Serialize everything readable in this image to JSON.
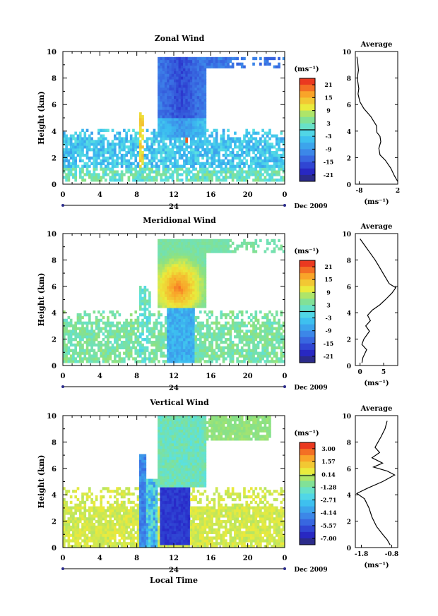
{
  "chart_data": [
    {
      "type": "heatmap",
      "title": "Zonal Wind",
      "xlabel": "",
      "ylabel": "Height (km)",
      "x_ticks": [
        "0",
        "4",
        "8",
        "12",
        "16",
        "20",
        "0"
      ],
      "y_ticks": [
        "0",
        "2",
        "4",
        "6",
        "8",
        "10"
      ],
      "xlim": [
        0,
        24
      ],
      "ylim": [
        0,
        10
      ],
      "date_tick": "24",
      "date_label": "Dec 2009",
      "colorbar": {
        "unit": "(ms⁻¹)",
        "ticks": [
          "21",
          "15",
          "9",
          "3",
          "-3",
          "-9",
          "-15",
          "-21"
        ],
        "range": [
          -24,
          24
        ]
      },
      "profile": {
        "title": "Average",
        "xlabel": "(ms⁻¹)",
        "x_ticks": [
          "-8",
          "2"
        ],
        "y_ticks": [
          "0",
          "2",
          "4",
          "6",
          "8",
          "10"
        ],
        "xlim": [
          -9,
          2
        ],
        "points": [
          [
            -8.6,
            9.6
          ],
          [
            -8.4,
            9.2
          ],
          [
            -8.2,
            8.6
          ],
          [
            -8.5,
            8.0
          ],
          [
            -8.1,
            7.2
          ],
          [
            -8.3,
            6.8
          ],
          [
            -7.8,
            6.2
          ],
          [
            -6.8,
            5.7
          ],
          [
            -5.0,
            5.1
          ],
          [
            -3.5,
            4.4
          ],
          [
            -3.4,
            3.9
          ],
          [
            -2.6,
            3.6
          ],
          [
            -2.4,
            3.2
          ],
          [
            -2.9,
            2.7
          ],
          [
            -2.6,
            2.2
          ],
          [
            -1.2,
            1.8
          ],
          [
            0.2,
            1.2
          ],
          [
            1.2,
            0.6
          ],
          [
            2.0,
            0.2
          ]
        ]
      }
    },
    {
      "type": "heatmap",
      "title": "Meridional Wind",
      "xlabel": "",
      "ylabel": "Height (km)",
      "x_ticks": [
        "0",
        "4",
        "8",
        "12",
        "16",
        "20",
        "0"
      ],
      "y_ticks": [
        "0",
        "2",
        "4",
        "6",
        "8",
        "10"
      ],
      "xlim": [
        0,
        24
      ],
      "ylim": [
        0,
        10
      ],
      "date_tick": "24",
      "date_label": "Dec 2009",
      "colorbar": {
        "unit": "(ms⁻¹)",
        "ticks": [
          "21",
          "15",
          "9",
          "3",
          "-3",
          "-9",
          "-15",
          "-21"
        ],
        "range": [
          -24,
          24
        ]
      },
      "profile": {
        "title": "Average",
        "xlabel": "(ms⁻¹)",
        "x_ticks": [
          "0",
          "5"
        ],
        "y_ticks": [
          "0",
          "2",
          "4",
          "6",
          "8",
          "10"
        ],
        "xlim": [
          -1,
          8
        ],
        "points": [
          [
            0.0,
            9.6
          ],
          [
            0.8,
            9.2
          ],
          [
            2.0,
            8.6
          ],
          [
            3.2,
            8.0
          ],
          [
            4.2,
            7.4
          ],
          [
            5.2,
            6.8
          ],
          [
            6.2,
            6.2
          ],
          [
            7.6,
            5.9
          ],
          [
            6.8,
            5.5
          ],
          [
            5.4,
            5.0
          ],
          [
            4.2,
            4.6
          ],
          [
            2.6,
            4.2
          ],
          [
            1.6,
            3.8
          ],
          [
            2.2,
            3.4
          ],
          [
            1.2,
            3.0
          ],
          [
            2.0,
            2.6
          ],
          [
            0.8,
            2.0
          ],
          [
            0.4,
            1.6
          ],
          [
            1.4,
            1.2
          ],
          [
            0.6,
            0.6
          ],
          [
            0.4,
            0.2
          ]
        ]
      }
    },
    {
      "type": "heatmap",
      "title": "Vertical Wind",
      "xlabel": "Local Time",
      "ylabel": "Height (km)",
      "x_ticks": [
        "0",
        "4",
        "8",
        "12",
        "16",
        "20",
        "0"
      ],
      "y_ticks": [
        "0",
        "2",
        "4",
        "6",
        "8",
        "10"
      ],
      "xlim": [
        0,
        24
      ],
      "ylim": [
        0,
        10
      ],
      "date_tick": "24",
      "date_label": "Dec 2009",
      "colorbar": {
        "unit": "(ms⁻¹)",
        "ticks": [
          "3.00",
          "1.57",
          "0.14",
          "-1.28",
          "-2.71",
          "-4.14",
          "-5.57",
          "-7.00"
        ],
        "range": [
          -7.7,
          3.7
        ]
      },
      "profile": {
        "title": "Average",
        "xlabel": "(ms⁻¹)",
        "x_ticks": [
          "-1.8",
          "-0.8"
        ],
        "y_ticks": [
          "0",
          "2",
          "4",
          "6",
          "8",
          "10"
        ],
        "xlim": [
          -2.0,
          -0.6
        ],
        "points": [
          [
            -0.95,
            9.6
          ],
          [
            -1.02,
            9.0
          ],
          [
            -1.15,
            8.4
          ],
          [
            -1.35,
            7.6
          ],
          [
            -1.2,
            7.2
          ],
          [
            -1.45,
            6.8
          ],
          [
            -1.1,
            6.4
          ],
          [
            -1.4,
            6.1
          ],
          [
            -0.95,
            5.8
          ],
          [
            -0.7,
            5.5
          ],
          [
            -1.1,
            5.0
          ],
          [
            -1.6,
            4.5
          ],
          [
            -1.95,
            4.1
          ],
          [
            -1.7,
            3.7
          ],
          [
            -1.55,
            3.0
          ],
          [
            -1.45,
            2.3
          ],
          [
            -1.3,
            1.6
          ],
          [
            -1.1,
            1.0
          ],
          [
            -0.95,
            0.6
          ],
          [
            -0.85,
            0.2
          ]
        ]
      }
    }
  ]
}
